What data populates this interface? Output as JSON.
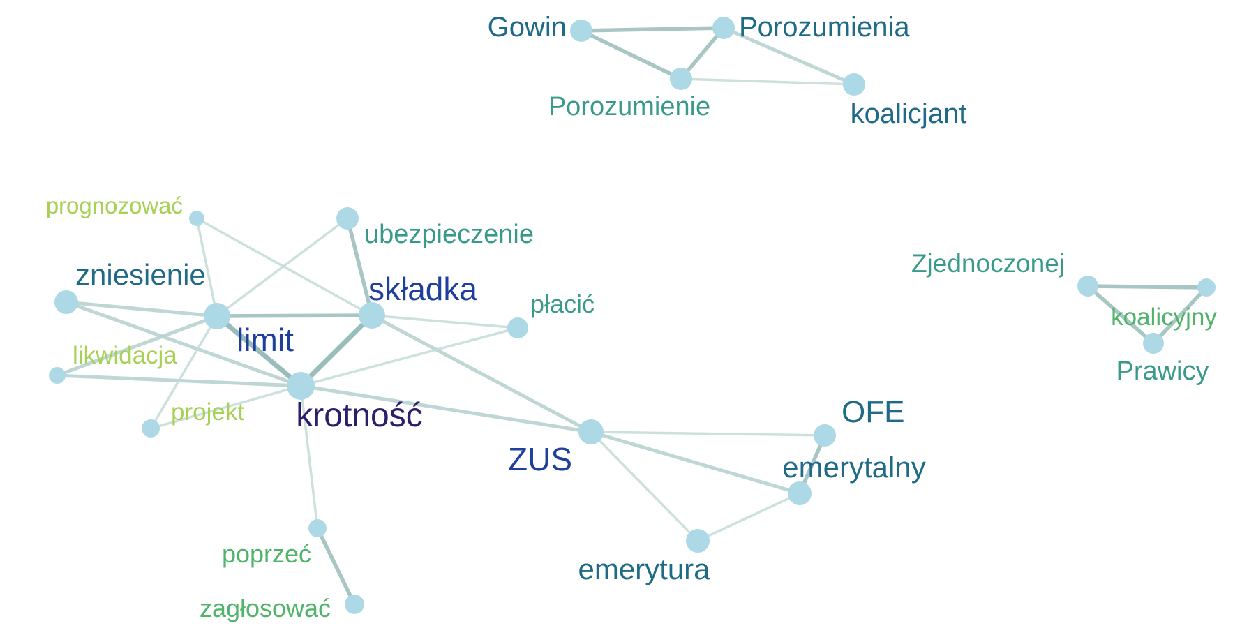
{
  "nodes": [
    {
      "id": "gowin",
      "label": "Gowin",
      "color": "#1f6a86"
    },
    {
      "id": "porozumienia",
      "label": "Porozumienia",
      "color": "#1f6a86"
    },
    {
      "id": "porozumienie",
      "label": "Porozumienie",
      "color": "#3a9a8a"
    },
    {
      "id": "koalicjant",
      "label": "koalicjant",
      "color": "#1f6a86"
    },
    {
      "id": "prognozowac",
      "label": "prognozować",
      "color": "#a6d155"
    },
    {
      "id": "ubezpieczenie",
      "label": "ubezpieczenie",
      "color": "#3a9a8a"
    },
    {
      "id": "zniesienie",
      "label": "zniesienie",
      "color": "#1f6a86"
    },
    {
      "id": "skladka",
      "label": "składka",
      "color": "#1f3f9c"
    },
    {
      "id": "placic",
      "label": "płacić",
      "color": "#3a9a8a"
    },
    {
      "id": "limit",
      "label": "limit",
      "color": "#1f3f9c"
    },
    {
      "id": "likwidacja",
      "label": "likwidacja",
      "color": "#a6d155"
    },
    {
      "id": "krotnosc",
      "label": "krotność",
      "color": "#2d1e6b"
    },
    {
      "id": "projekt",
      "label": "projekt",
      "color": "#a6d155"
    },
    {
      "id": "zus",
      "label": "ZUS",
      "color": "#1f3f9c"
    },
    {
      "id": "ofe",
      "label": "OFE",
      "color": "#1f6a86"
    },
    {
      "id": "emerytalny",
      "label": "emerytalny",
      "color": "#1f6a86"
    },
    {
      "id": "emerytura",
      "label": "emerytura",
      "color": "#1f6a86"
    },
    {
      "id": "poprzec",
      "label": "poprzeć",
      "color": "#4fb36a"
    },
    {
      "id": "zaglosowac",
      "label": "zagłosować",
      "color": "#4fb36a"
    },
    {
      "id": "zjednoczonej",
      "label": "Zjednoczonej",
      "color": "#3a9a8a"
    },
    {
      "id": "koalicyjny",
      "label": "koalicyjny",
      "color": "#4fb36a"
    },
    {
      "id": "prawicy",
      "label": "Prawicy",
      "color": "#3a9a8a"
    },
    {
      "id": "unlabeled_right",
      "label": "",
      "color": "#add8e6"
    }
  ],
  "edges": [
    {
      "source": "gowin",
      "target": "porozumienia",
      "weight": 3
    },
    {
      "source": "gowin",
      "target": "porozumienie",
      "weight": 3
    },
    {
      "source": "porozumienia",
      "target": "porozumienie",
      "weight": 3
    },
    {
      "source": "porozumienia",
      "target": "koalicjant",
      "weight": 2
    },
    {
      "source": "porozumienie",
      "target": "koalicjant",
      "weight": 1
    },
    {
      "source": "prognozowac",
      "target": "limit",
      "weight": 1
    },
    {
      "source": "prognozowac",
      "target": "skladka",
      "weight": 1
    },
    {
      "source": "ubezpieczenie",
      "target": "skladka",
      "weight": 3
    },
    {
      "source": "ubezpieczenie",
      "target": "limit",
      "weight": 1
    },
    {
      "source": "zniesienie",
      "target": "limit",
      "weight": 2
    },
    {
      "source": "zniesienie",
      "target": "krotnosc",
      "weight": 2
    },
    {
      "source": "limit",
      "target": "skladka",
      "weight": 3
    },
    {
      "source": "limit",
      "target": "krotnosc",
      "weight": 4
    },
    {
      "source": "skladka",
      "target": "krotnosc",
      "weight": 4
    },
    {
      "source": "skladka",
      "target": "placic",
      "weight": 1
    },
    {
      "source": "skladka",
      "target": "zus",
      "weight": 2
    },
    {
      "source": "placic",
      "target": "krotnosc",
      "weight": 1
    },
    {
      "source": "likwidacja",
      "target": "limit",
      "weight": 2
    },
    {
      "source": "likwidacja",
      "target": "krotnosc",
      "weight": 2
    },
    {
      "source": "projekt",
      "target": "limit",
      "weight": 1
    },
    {
      "source": "projekt",
      "target": "krotnosc",
      "weight": 1
    },
    {
      "source": "krotnosc",
      "target": "zus",
      "weight": 2
    },
    {
      "source": "krotnosc",
      "target": "poprzec",
      "weight": 1
    },
    {
      "source": "poprzec",
      "target": "zaglosowac",
      "weight": 3
    },
    {
      "source": "zus",
      "target": "ofe",
      "weight": 1
    },
    {
      "source": "zus",
      "target": "emerytalny",
      "weight": 2
    },
    {
      "source": "zus",
      "target": "emerytura",
      "weight": 1
    },
    {
      "source": "ofe",
      "target": "emerytalny",
      "weight": 3
    },
    {
      "source": "emerytura",
      "target": "emerytalny",
      "weight": 1
    },
    {
      "source": "zjednoczonej",
      "target": "unlabeled_right",
      "weight": 3
    },
    {
      "source": "zjednoczonej",
      "target": "prawicy",
      "weight": 3
    },
    {
      "source": "unlabeled_right",
      "target": "prawicy",
      "weight": 3
    }
  ]
}
